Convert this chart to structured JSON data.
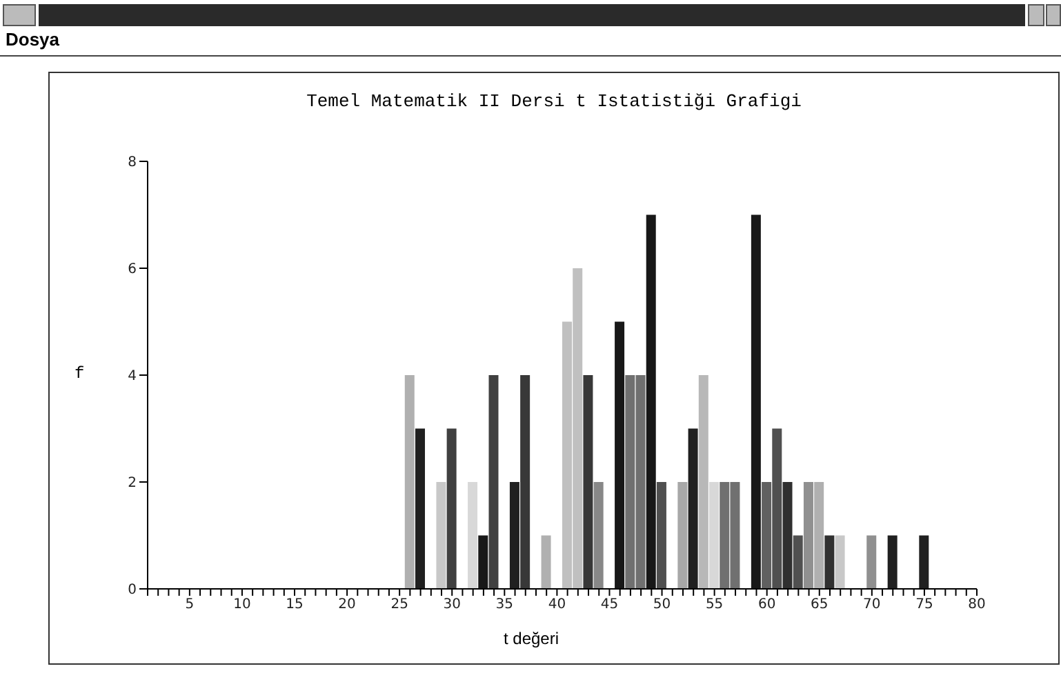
{
  "chart_data": {
    "type": "bar",
    "title": "Temel Matematik II Dersi t Istatistiği Grafigi",
    "xlabel": "t değeri",
    "ylabel": "f",
    "annotations": [
      "Dosya"
    ],
    "x": [
      26,
      27,
      29,
      30,
      32,
      33,
      34,
      36,
      37,
      39,
      41,
      42,
      43,
      44,
      46,
      47,
      48,
      49,
      50,
      52,
      53,
      54,
      55,
      56,
      57,
      59,
      60,
      61,
      62,
      63,
      64,
      65,
      66,
      67,
      70,
      72,
      75
    ],
    "values": [
      4,
      3,
      2,
      3,
      2,
      1,
      4,
      2,
      4,
      1,
      5,
      6,
      4,
      2,
      5,
      4,
      4,
      7,
      2,
      2,
      3,
      4,
      2,
      2,
      2,
      7,
      2,
      3,
      2,
      1,
      2,
      2,
      1,
      1,
      1,
      1,
      1
    ],
    "colors": [
      "#b0b0b0",
      "#202020",
      "#c8c8c8",
      "#404040",
      "#d8d8d8",
      "#181818",
      "#404040",
      "#202020",
      "#383838",
      "#b0b0b0",
      "#c0c0c0",
      "#c0c0c0",
      "#383838",
      "#888888",
      "#181818",
      "#707070",
      "#707070",
      "#181818",
      "#505050",
      "#a8a8a8",
      "#202020",
      "#b8b8b8",
      "#d8d8d8",
      "#707070",
      "#707070",
      "#181818",
      "#606060",
      "#505050",
      "#303030",
      "#505050",
      "#909090",
      "#b0b0b0",
      "#303030",
      "#c8c8c8",
      "#909090",
      "#202020",
      "#202020"
    ],
    "xlim": [
      1,
      80
    ],
    "xticks": [
      {
        "value": 1,
        "label": null
      },
      {
        "value": 2,
        "label": null
      },
      {
        "value": 3,
        "label": null
      },
      {
        "value": 4,
        "label": null
      },
      5,
      {
        "value": 6,
        "label": null
      },
      {
        "value": 7,
        "label": null
      },
      {
        "value": 8,
        "label": null
      },
      {
        "value": 9,
        "label": null
      },
      10,
      {
        "value": 11,
        "label": null
      },
      {
        "value": 12,
        "label": null
      },
      {
        "value": 13,
        "label": null
      },
      {
        "value": 14,
        "label": null
      },
      15,
      {
        "value": 16,
        "label": null
      },
      {
        "value": 17,
        "label": null
      },
      {
        "value": 18,
        "label": null
      },
      {
        "value": 19,
        "label": null
      },
      20,
      {
        "value": 21,
        "label": null
      },
      {
        "value": 22,
        "label": null
      },
      {
        "value": 23,
        "label": null
      },
      {
        "value": 24,
        "label": null
      },
      25,
      {
        "value": 26,
        "label": null
      },
      {
        "value": 27,
        "label": null
      },
      {
        "value": 28,
        "label": null
      },
      {
        "value": 29,
        "label": null
      },
      30,
      {
        "value": 31,
        "label": null
      },
      {
        "value": 32,
        "label": null
      },
      {
        "value": 33,
        "label": null
      },
      {
        "value": 34,
        "label": null
      },
      35,
      {
        "value": 36,
        "label": null
      },
      {
        "value": 37,
        "label": null
      },
      {
        "value": 38,
        "label": null
      },
      {
        "value": 39,
        "label": null
      },
      40,
      {
        "value": 41,
        "label": null
      },
      {
        "value": 42,
        "label": null
      },
      {
        "value": 43,
        "label": null
      },
      {
        "value": 44,
        "label": null
      },
      45,
      {
        "value": 46,
        "label": null
      },
      {
        "value": 47,
        "label": null
      },
      {
        "value": 48,
        "label": null
      },
      {
        "value": 49,
        "label": null
      },
      50,
      {
        "value": 51,
        "label": null
      },
      {
        "value": 52,
        "label": null
      },
      {
        "value": 53,
        "label": null
      },
      {
        "value": 54,
        "label": null
      },
      55,
      {
        "value": 56,
        "label": null
      },
      {
        "value": 57,
        "label": null
      },
      {
        "value": 58,
        "label": null
      },
      {
        "value": 59,
        "label": null
      },
      60,
      {
        "value": 61,
        "label": null
      },
      {
        "value": 62,
        "label": null
      },
      {
        "value": 63,
        "label": null
      },
      {
        "value": 64,
        "label": null
      },
      65,
      {
        "value": 66,
        "label": null
      },
      {
        "value": 67,
        "label": null
      },
      {
        "value": 68,
        "label": null
      },
      {
        "value": 69,
        "label": null
      },
      70,
      {
        "value": 71,
        "label": null
      },
      {
        "value": 72,
        "label": null
      },
      {
        "value": 73,
        "label": null
      },
      {
        "value": 74,
        "label": null
      },
      75,
      {
        "value": 76,
        "label": null
      },
      {
        "value": 77,
        "label": null
      },
      {
        "value": 78,
        "label": null
      },
      {
        "value": 79,
        "label": null
      },
      80
    ],
    "ylim": [
      0,
      8
    ],
    "yticks": [
      0,
      2,
      4,
      6,
      8
    ]
  }
}
